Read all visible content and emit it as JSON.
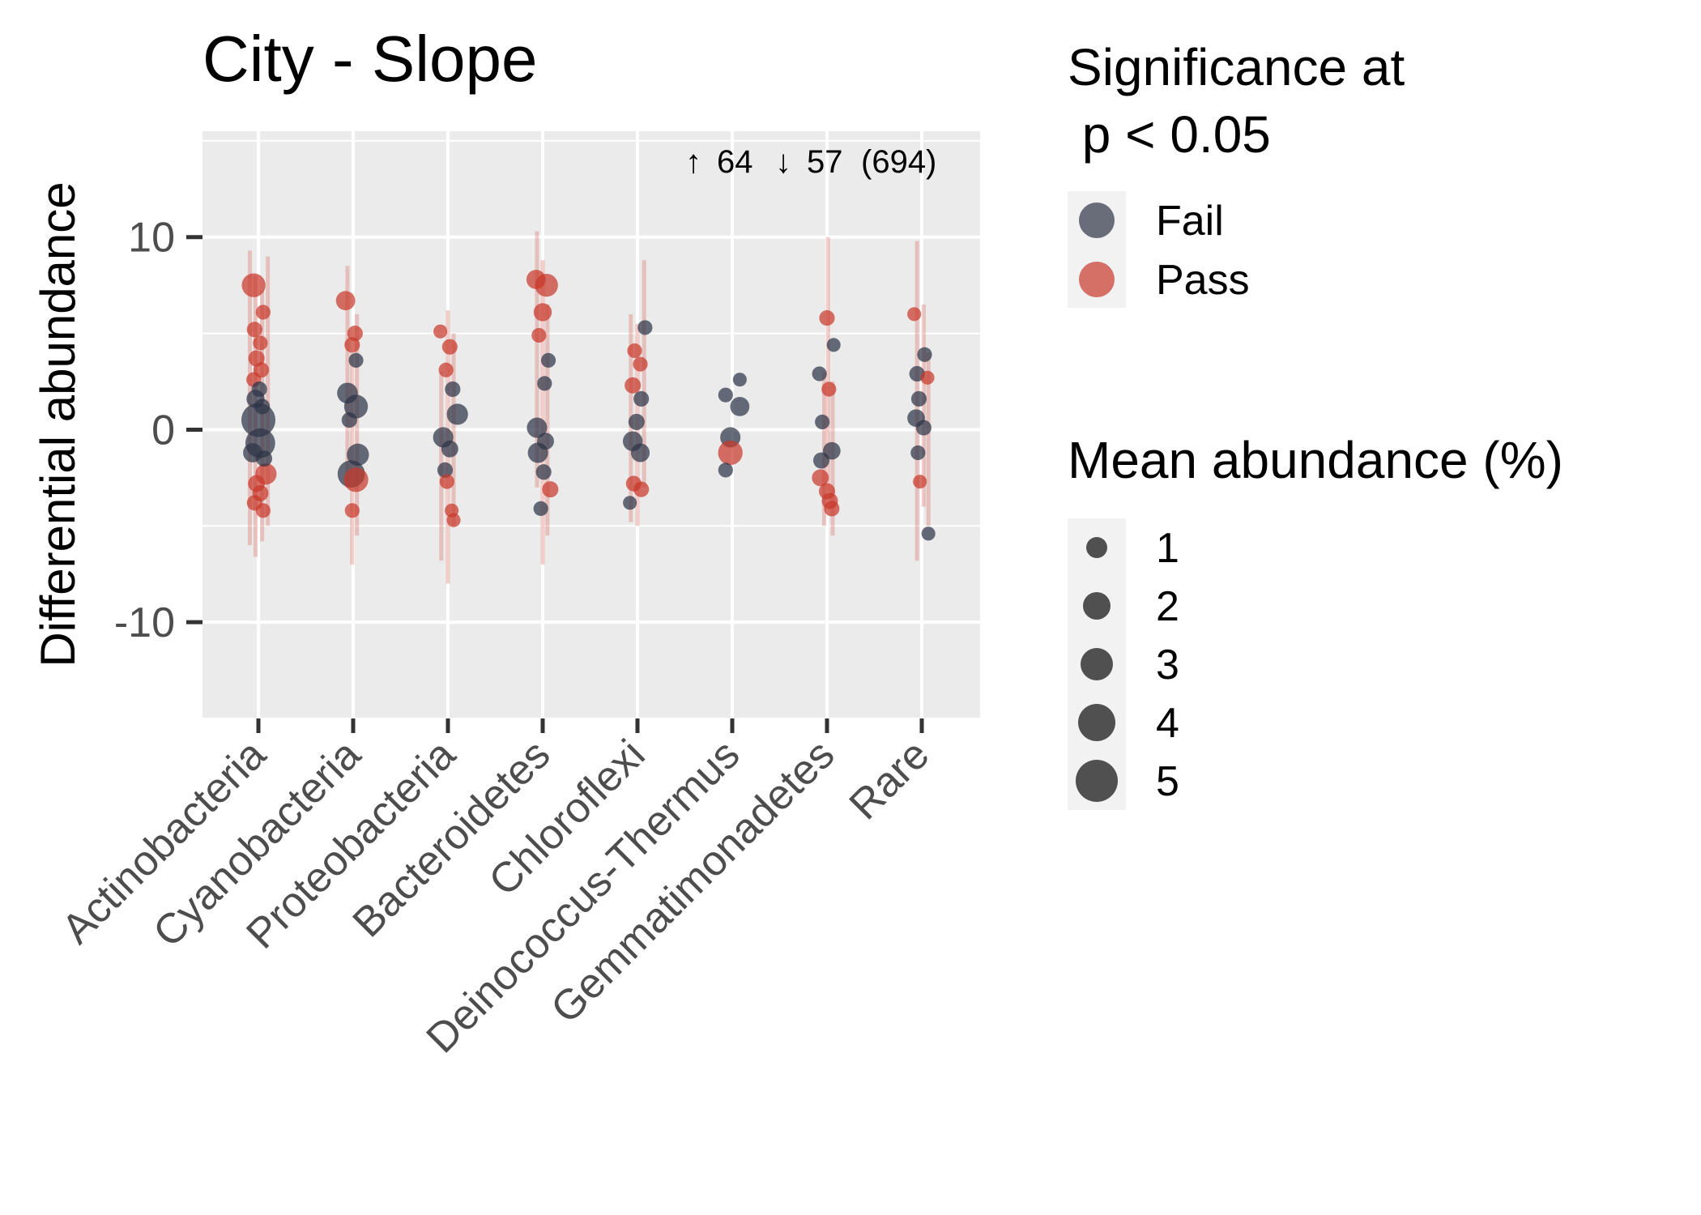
{
  "chart_data": {
    "type": "scatter",
    "title": "City - Slope",
    "xlabel": "",
    "ylabel": "Differential abundance",
    "ylim": [
      -15,
      15.5
    ],
    "yticks": [
      -10,
      0,
      10
    ],
    "ytick_labels": [
      "-10",
      "0",
      "10"
    ],
    "categories": [
      "Actinobacteria",
      "Cyanobacteria",
      "Proteobacteria",
      "Bacteroidetes",
      "Chloroflexi",
      "Deinococcus-Thermus",
      "Gemmatimonadetes",
      "Rare"
    ],
    "grid": true,
    "annotation": {
      "up_arrow": "↑",
      "up_count": "64",
      "down_arrow": "↓",
      "down_count": "57",
      "total": "(694)"
    },
    "legend_significance": {
      "title_line1": "Significance at",
      "title_line2": " p < 0.05",
      "entries": [
        {
          "label": "Fail",
          "color": "#2d3446"
        },
        {
          "label": "Pass",
          "color": "#c8392b"
        }
      ]
    },
    "legend_size": {
      "title": "Mean abundance (%)",
      "entries": [
        {
          "label": "1",
          "value": 1
        },
        {
          "label": "2",
          "value": 2
        },
        {
          "label": "3",
          "value": 3
        },
        {
          "label": "4",
          "value": 4
        },
        {
          "label": "5",
          "value": 5
        }
      ]
    },
    "colors": {
      "fail": "#2d3446",
      "pass": "#c8392b",
      "panel": "#ebebeb",
      "grid": "#ffffff"
    },
    "points": [
      {
        "cat": 0,
        "dx": -0.05,
        "y": 7.5,
        "sig": "pass",
        "size": 2.2
      },
      {
        "cat": 0,
        "dx": 0.0,
        "y": 0.5,
        "sig": "fail",
        "size": 5.6
      },
      {
        "cat": 0,
        "dx": 0.02,
        "y": -0.7,
        "sig": "fail",
        "size": 4.0
      },
      {
        "cat": 0,
        "dx": 0.08,
        "y": -2.3,
        "sig": "pass",
        "size": 1.6
      },
      {
        "cat": 0,
        "dx": 0.05,
        "y": 6.1,
        "sig": "pass",
        "size": 0.5
      },
      {
        "cat": 0,
        "dx": -0.04,
        "y": 5.2,
        "sig": "pass",
        "size": 0.6
      },
      {
        "cat": 0,
        "dx": 0.02,
        "y": 4.5,
        "sig": "pass",
        "size": 0.5
      },
      {
        "cat": 0,
        "dx": -0.02,
        "y": 3.7,
        "sig": "pass",
        "size": 0.7
      },
      {
        "cat": 0,
        "dx": 0.03,
        "y": 3.1,
        "sig": "pass",
        "size": 0.6
      },
      {
        "cat": 0,
        "dx": -0.05,
        "y": 2.6,
        "sig": "pass",
        "size": 0.5
      },
      {
        "cat": 0,
        "dx": 0.01,
        "y": 2.1,
        "sig": "fail",
        "size": 0.6
      },
      {
        "cat": 0,
        "dx": -0.03,
        "y": 1.6,
        "sig": "fail",
        "size": 1.0
      },
      {
        "cat": 0,
        "dx": 0.04,
        "y": 1.2,
        "sig": "fail",
        "size": 0.6
      },
      {
        "cat": 0,
        "dx": -0.06,
        "y": -1.2,
        "sig": "fail",
        "size": 1.2
      },
      {
        "cat": 0,
        "dx": 0.06,
        "y": -1.5,
        "sig": "fail",
        "size": 0.7
      },
      {
        "cat": 0,
        "dx": -0.02,
        "y": -2.8,
        "sig": "pass",
        "size": 0.8
      },
      {
        "cat": 0,
        "dx": 0.02,
        "y": -3.3,
        "sig": "pass",
        "size": 0.7
      },
      {
        "cat": 0,
        "dx": -0.04,
        "y": -3.8,
        "sig": "pass",
        "size": 0.6
      },
      {
        "cat": 0,
        "dx": 0.05,
        "y": -4.2,
        "sig": "pass",
        "size": 0.5
      },
      {
        "cat": 1,
        "dx": -0.08,
        "y": 6.7,
        "sig": "pass",
        "size": 1.2
      },
      {
        "cat": 1,
        "dx": 0.02,
        "y": 5.0,
        "sig": "pass",
        "size": 0.6
      },
      {
        "cat": 1,
        "dx": -0.01,
        "y": 4.4,
        "sig": "pass",
        "size": 0.6
      },
      {
        "cat": 1,
        "dx": 0.03,
        "y": 3.6,
        "sig": "fail",
        "size": 0.5
      },
      {
        "cat": 1,
        "dx": -0.06,
        "y": 1.9,
        "sig": "fail",
        "size": 1.5
      },
      {
        "cat": 1,
        "dx": 0.03,
        "y": 1.2,
        "sig": "fail",
        "size": 2.2
      },
      {
        "cat": 1,
        "dx": -0.04,
        "y": 0.5,
        "sig": "fail",
        "size": 0.6
      },
      {
        "cat": 1,
        "dx": -0.02,
        "y": -2.3,
        "sig": "fail",
        "size": 3.2
      },
      {
        "cat": 1,
        "dx": 0.05,
        "y": -1.3,
        "sig": "fail",
        "size": 1.8
      },
      {
        "cat": 1,
        "dx": 0.03,
        "y": -2.6,
        "sig": "pass",
        "size": 2.4
      },
      {
        "cat": 1,
        "dx": -0.01,
        "y": -4.2,
        "sig": "pass",
        "size": 0.5
      },
      {
        "cat": 2,
        "dx": -0.08,
        "y": 5.1,
        "sig": "pass",
        "size": 0.4
      },
      {
        "cat": 2,
        "dx": 0.02,
        "y": 4.3,
        "sig": "pass",
        "size": 0.6
      },
      {
        "cat": 2,
        "dx": -0.02,
        "y": 3.1,
        "sig": "pass",
        "size": 0.5
      },
      {
        "cat": 2,
        "dx": 0.05,
        "y": 2.1,
        "sig": "fail",
        "size": 0.6
      },
      {
        "cat": 2,
        "dx": 0.1,
        "y": 0.8,
        "sig": "fail",
        "size": 1.6
      },
      {
        "cat": 2,
        "dx": -0.05,
        "y": -0.4,
        "sig": "fail",
        "size": 1.4
      },
      {
        "cat": 2,
        "dx": 0.02,
        "y": -1.0,
        "sig": "fail",
        "size": 0.8
      },
      {
        "cat": 2,
        "dx": -0.03,
        "y": -2.1,
        "sig": "fail",
        "size": 0.6
      },
      {
        "cat": 2,
        "dx": -0.01,
        "y": -2.7,
        "sig": "pass",
        "size": 0.5
      },
      {
        "cat": 2,
        "dx": 0.04,
        "y": -4.2,
        "sig": "pass",
        "size": 0.4
      },
      {
        "cat": 2,
        "dx": 0.06,
        "y": -4.7,
        "sig": "pass",
        "size": 0.4
      },
      {
        "cat": 3,
        "dx": -0.07,
        "y": 7.8,
        "sig": "pass",
        "size": 1.2
      },
      {
        "cat": 3,
        "dx": 0.04,
        "y": 7.5,
        "sig": "pass",
        "size": 2.0
      },
      {
        "cat": 3,
        "dx": 0.0,
        "y": 6.1,
        "sig": "pass",
        "size": 1.0
      },
      {
        "cat": 3,
        "dx": -0.04,
        "y": 4.9,
        "sig": "pass",
        "size": 0.5
      },
      {
        "cat": 3,
        "dx": 0.06,
        "y": 3.6,
        "sig": "fail",
        "size": 0.5
      },
      {
        "cat": 3,
        "dx": 0.02,
        "y": 2.4,
        "sig": "fail",
        "size": 0.5
      },
      {
        "cat": 3,
        "dx": -0.06,
        "y": 0.1,
        "sig": "fail",
        "size": 1.4
      },
      {
        "cat": 3,
        "dx": 0.03,
        "y": -0.6,
        "sig": "fail",
        "size": 0.8
      },
      {
        "cat": 3,
        "dx": -0.05,
        "y": -1.2,
        "sig": "fail",
        "size": 1.4
      },
      {
        "cat": 3,
        "dx": 0.01,
        "y": -2.2,
        "sig": "fail",
        "size": 0.6
      },
      {
        "cat": 3,
        "dx": 0.08,
        "y": -3.1,
        "sig": "pass",
        "size": 0.7
      },
      {
        "cat": 3,
        "dx": -0.02,
        "y": -4.1,
        "sig": "fail",
        "size": 0.5
      },
      {
        "cat": 4,
        "dx": 0.08,
        "y": 5.3,
        "sig": "fail",
        "size": 0.5
      },
      {
        "cat": 4,
        "dx": -0.03,
        "y": 4.1,
        "sig": "pass",
        "size": 0.5
      },
      {
        "cat": 4,
        "dx": 0.03,
        "y": 3.4,
        "sig": "pass",
        "size": 0.5
      },
      {
        "cat": 4,
        "dx": -0.05,
        "y": 2.3,
        "sig": "pass",
        "size": 0.7
      },
      {
        "cat": 4,
        "dx": 0.04,
        "y": 1.6,
        "sig": "fail",
        "size": 0.6
      },
      {
        "cat": 4,
        "dx": -0.01,
        "y": 0.4,
        "sig": "fail",
        "size": 0.7
      },
      {
        "cat": 4,
        "dx": -0.05,
        "y": -0.6,
        "sig": "fail",
        "size": 1.3
      },
      {
        "cat": 4,
        "dx": 0.03,
        "y": -1.2,
        "sig": "fail",
        "size": 1.1
      },
      {
        "cat": 4,
        "dx": -0.04,
        "y": -2.8,
        "sig": "pass",
        "size": 0.6
      },
      {
        "cat": 4,
        "dx": 0.04,
        "y": -3.1,
        "sig": "pass",
        "size": 0.6
      },
      {
        "cat": 4,
        "dx": -0.08,
        "y": -3.8,
        "sig": "fail",
        "size": 0.4
      },
      {
        "cat": 5,
        "dx": -0.07,
        "y": 1.8,
        "sig": "fail",
        "size": 0.5
      },
      {
        "cat": 5,
        "dx": 0.08,
        "y": 1.2,
        "sig": "fail",
        "size": 1.2
      },
      {
        "cat": 5,
        "dx": 0.08,
        "y": 2.6,
        "sig": "fail",
        "size": 0.4
      },
      {
        "cat": 5,
        "dx": -0.02,
        "y": -0.4,
        "sig": "fail",
        "size": 1.4
      },
      {
        "cat": 5,
        "dx": -0.02,
        "y": -1.2,
        "sig": "pass",
        "size": 2.4
      },
      {
        "cat": 5,
        "dx": -0.07,
        "y": -2.1,
        "sig": "fail",
        "size": 0.5
      },
      {
        "cat": 6,
        "dx": 0.0,
        "y": 5.8,
        "sig": "pass",
        "size": 0.6
      },
      {
        "cat": 6,
        "dx": 0.07,
        "y": 4.4,
        "sig": "fail",
        "size": 0.4
      },
      {
        "cat": 6,
        "dx": -0.08,
        "y": 2.9,
        "sig": "fail",
        "size": 0.5
      },
      {
        "cat": 6,
        "dx": 0.02,
        "y": 2.1,
        "sig": "pass",
        "size": 0.5
      },
      {
        "cat": 6,
        "dx": -0.05,
        "y": 0.4,
        "sig": "fail",
        "size": 0.5
      },
      {
        "cat": 6,
        "dx": 0.05,
        "y": -1.1,
        "sig": "fail",
        "size": 0.9
      },
      {
        "cat": 6,
        "dx": -0.06,
        "y": -1.6,
        "sig": "fail",
        "size": 0.7
      },
      {
        "cat": 6,
        "dx": -0.07,
        "y": -2.5,
        "sig": "pass",
        "size": 0.8
      },
      {
        "cat": 6,
        "dx": 0.0,
        "y": -3.2,
        "sig": "pass",
        "size": 0.7
      },
      {
        "cat": 6,
        "dx": 0.03,
        "y": -3.7,
        "sig": "pass",
        "size": 0.7
      },
      {
        "cat": 6,
        "dx": 0.05,
        "y": -4.1,
        "sig": "pass",
        "size": 0.6
      },
      {
        "cat": 7,
        "dx": -0.08,
        "y": 6.0,
        "sig": "pass",
        "size": 0.4
      },
      {
        "cat": 7,
        "dx": 0.03,
        "y": 3.9,
        "sig": "fail",
        "size": 0.5
      },
      {
        "cat": 7,
        "dx": -0.05,
        "y": 2.9,
        "sig": "fail",
        "size": 0.6
      },
      {
        "cat": 7,
        "dx": 0.06,
        "y": 2.7,
        "sig": "pass",
        "size": 0.4
      },
      {
        "cat": 7,
        "dx": -0.03,
        "y": 1.6,
        "sig": "fail",
        "size": 0.6
      },
      {
        "cat": 7,
        "dx": -0.06,
        "y": 0.6,
        "sig": "fail",
        "size": 0.9
      },
      {
        "cat": 7,
        "dx": 0.02,
        "y": 0.1,
        "sig": "fail",
        "size": 0.6
      },
      {
        "cat": 7,
        "dx": -0.04,
        "y": -1.2,
        "sig": "fail",
        "size": 0.5
      },
      {
        "cat": 7,
        "dx": -0.02,
        "y": -2.7,
        "sig": "pass",
        "size": 0.4
      },
      {
        "cat": 7,
        "dx": 0.07,
        "y": -5.4,
        "sig": "fail",
        "size": 0.4
      }
    ],
    "error_bars": [
      {
        "cat": 0,
        "dx": -0.09,
        "ylo": -6.0,
        "yhi": 9.3
      },
      {
        "cat": 0,
        "dx": -0.03,
        "ylo": -6.6,
        "yhi": 8.0
      },
      {
        "cat": 0,
        "dx": 0.04,
        "ylo": -5.8,
        "yhi": 7.2
      },
      {
        "cat": 0,
        "dx": 0.1,
        "ylo": -5.0,
        "yhi": 9.0
      },
      {
        "cat": 1,
        "dx": -0.06,
        "ylo": -3.0,
        "yhi": 8.5
      },
      {
        "cat": 1,
        "dx": -0.01,
        "ylo": -7.0,
        "yhi": 4.0
      },
      {
        "cat": 1,
        "dx": 0.04,
        "ylo": -5.5,
        "yhi": 6.0
      },
      {
        "cat": 2,
        "dx": -0.07,
        "ylo": -6.8,
        "yhi": 3.0
      },
      {
        "cat": 2,
        "dx": 0.0,
        "ylo": -8.0,
        "yhi": 6.2
      },
      {
        "cat": 2,
        "dx": 0.06,
        "ylo": -5.0,
        "yhi": 5.0
      },
      {
        "cat": 3,
        "dx": -0.06,
        "ylo": -3.0,
        "yhi": 10.3
      },
      {
        "cat": 3,
        "dx": 0.0,
        "ylo": -7.0,
        "yhi": 8.8
      },
      {
        "cat": 3,
        "dx": 0.05,
        "ylo": -5.5,
        "yhi": 6.5
      },
      {
        "cat": 4,
        "dx": -0.07,
        "ylo": -4.8,
        "yhi": 6.0
      },
      {
        "cat": 4,
        "dx": 0.0,
        "ylo": -5.0,
        "yhi": 5.5
      },
      {
        "cat": 4,
        "dx": 0.07,
        "ylo": -3.0,
        "yhi": 8.8
      },
      {
        "cat": 6,
        "dx": -0.03,
        "ylo": -5.0,
        "yhi": 3.0
      },
      {
        "cat": 6,
        "dx": 0.01,
        "ylo": -3.2,
        "yhi": 10.0
      },
      {
        "cat": 6,
        "dx": 0.06,
        "ylo": -5.5,
        "yhi": 2.5
      },
      {
        "cat": 7,
        "dx": -0.05,
        "ylo": -6.8,
        "yhi": 9.8
      },
      {
        "cat": 7,
        "dx": 0.02,
        "ylo": -4.0,
        "yhi": 6.5
      },
      {
        "cat": 7,
        "dx": 0.07,
        "ylo": -5.0,
        "yhi": 4.0
      }
    ]
  }
}
